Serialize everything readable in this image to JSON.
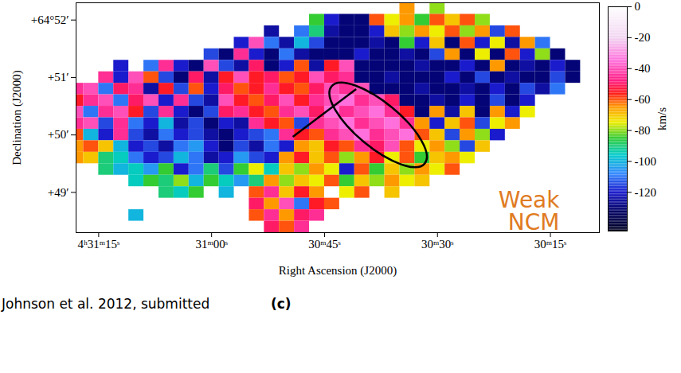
{
  "chart_data": {
    "type": "heatmap",
    "xlabel": "Right Ascension (J2000)",
    "ylabel": "Declination (J2000)",
    "xlim": [
      78,
      8.5
    ],
    "xticks": [
      {
        "value": 75,
        "label": "4ʰ31ᵐ15ˢ"
      },
      {
        "value": 60,
        "label": "31ᵐ00ˢ"
      },
      {
        "value": 45,
        "label": "30ᵐ45ˢ"
      },
      {
        "value": 30,
        "label": "30ᵐ30ˢ"
      },
      {
        "value": 15,
        "label": "30ᵐ15ˢ"
      }
    ],
    "ylim": [
      48.3,
      52.3
    ],
    "yticks": [
      {
        "value": 52,
        "label": "+64°52′"
      },
      {
        "value": 51,
        "label": "+51′"
      },
      {
        "value": 50,
        "label": "+50′"
      },
      {
        "value": 49,
        "label": "+49′"
      }
    ],
    "cells": {
      "x": [
        78,
        76,
        74,
        72,
        70,
        68,
        66,
        64,
        62,
        60,
        58,
        56,
        54,
        52,
        50,
        48,
        46,
        44,
        42,
        40,
        38,
        36,
        34,
        32,
        30,
        28,
        26,
        24,
        22,
        20,
        18,
        16,
        14,
        12
      ],
      "y": [
        52.2,
        52.0,
        51.8,
        51.6,
        51.4,
        51.2,
        51.0,
        50.8,
        50.6,
        50.4,
        50.2,
        50.0,
        49.8,
        49.6,
        49.4,
        49.2,
        49.0,
        48.8,
        48.6,
        48.4
      ],
      "values": [
        [
          null,
          null,
          null,
          null,
          null,
          null,
          null,
          null,
          null,
          null,
          null,
          null,
          null,
          null,
          null,
          null,
          null,
          null,
          null,
          null,
          null,
          null,
          -65,
          null,
          -80,
          null,
          null,
          null,
          null,
          null,
          null,
          null,
          null,
          null
        ],
        [
          null,
          null,
          null,
          null,
          null,
          null,
          null,
          null,
          null,
          null,
          null,
          null,
          null,
          null,
          null,
          null,
          -85,
          -120,
          -130,
          -130,
          -60,
          -75,
          -65,
          -85,
          -60,
          -70,
          -60,
          -80,
          null,
          null,
          null,
          null,
          null,
          null
        ],
        [
          null,
          null,
          null,
          null,
          null,
          null,
          null,
          null,
          null,
          null,
          null,
          null,
          null,
          -125,
          null,
          -110,
          -90,
          -125,
          -130,
          -130,
          -120,
          -70,
          -80,
          -65,
          -75,
          -60,
          -80,
          -65,
          -115,
          -60,
          null,
          null,
          null,
          null
        ],
        [
          null,
          null,
          null,
          null,
          null,
          null,
          null,
          null,
          null,
          null,
          null,
          -120,
          -40,
          -110,
          -125,
          -100,
          -115,
          -130,
          -130,
          -130,
          -125,
          -130,
          -85,
          -120,
          -70,
          -130,
          -60,
          -120,
          -75,
          -125,
          -65,
          -110,
          null,
          null
        ],
        [
          null,
          null,
          null,
          null,
          null,
          null,
          null,
          null,
          null,
          -115,
          -130,
          -45,
          -120,
          -130,
          -110,
          -125,
          -130,
          -130,
          -130,
          -120,
          -130,
          -130,
          -125,
          -130,
          -115,
          -65,
          -130,
          -75,
          -130,
          -60,
          -120,
          -80,
          -130,
          null
        ],
        [
          null,
          null,
          null,
          -120,
          null,
          -110,
          -45,
          -120,
          -130,
          -40,
          -115,
          -125,
          -50,
          -130,
          -120,
          -60,
          -125,
          -55,
          -40,
          -130,
          -130,
          -130,
          -130,
          -125,
          -130,
          -130,
          -120,
          -130,
          -65,
          -130,
          -125,
          -130,
          -120,
          -130
        ],
        [
          null,
          null,
          -45,
          -120,
          -40,
          -60,
          -115,
          -130,
          -50,
          -125,
          -55,
          -40,
          -55,
          -50,
          -60,
          -55,
          -40,
          -50,
          -45,
          -130,
          -130,
          -125,
          -130,
          -130,
          -130,
          -120,
          -130,
          -115,
          -130,
          -125,
          -130,
          -130,
          -115,
          -130
        ],
        [
          -45,
          -40,
          -110,
          -50,
          -45,
          -125,
          -55,
          -115,
          -60,
          -120,
          -50,
          -60,
          -55,
          -45,
          -55,
          -60,
          -50,
          -40,
          -45,
          -40,
          -130,
          -130,
          -130,
          -125,
          -130,
          -130,
          -125,
          -130,
          -120,
          -130,
          -115,
          -125,
          -110,
          null
        ],
        [
          -55,
          -45,
          -40,
          -110,
          -50,
          -40,
          -120,
          -45,
          -115,
          -125,
          -40,
          -55,
          -60,
          -50,
          -40,
          -55,
          -45,
          -40,
          -35,
          -45,
          -40,
          -50,
          -130,
          -130,
          -125,
          -130,
          -120,
          -130,
          -115,
          -130,
          -120,
          null,
          null,
          null
        ],
        [
          -40,
          -110,
          -45,
          -40,
          -55,
          -115,
          -45,
          -120,
          -130,
          -115,
          -50,
          -45,
          -55,
          -60,
          -45,
          -40,
          -50,
          -35,
          -45,
          -40,
          -35,
          -45,
          -55,
          -130,
          -65,
          -125,
          -70,
          -130,
          -65,
          -120,
          -75,
          null,
          null,
          null
        ],
        [
          -45,
          -40,
          -115,
          -45,
          -110,
          -120,
          -100,
          -125,
          -115,
          -130,
          -120,
          -125,
          -45,
          -55,
          -60,
          -115,
          -45,
          -40,
          -35,
          -45,
          -40,
          -35,
          -45,
          -65,
          -120,
          -70,
          -60,
          -115,
          -75,
          -65,
          null,
          null,
          null,
          null
        ],
        [
          -60,
          -100,
          -120,
          -45,
          -115,
          -125,
          -110,
          -120,
          -115,
          -125,
          -130,
          -120,
          -115,
          -110,
          -45,
          -55,
          -60,
          -45,
          -40,
          -35,
          -45,
          -40,
          -35,
          -60,
          -70,
          -115,
          -65,
          -80,
          -120,
          null,
          null,
          null,
          null,
          null
        ],
        [
          -65,
          -60,
          -70,
          -100,
          -120,
          -115,
          -125,
          -110,
          -105,
          -120,
          -130,
          -115,
          -125,
          -110,
          -120,
          -65,
          -70,
          -55,
          -60,
          -45,
          -50,
          -40,
          -60,
          -75,
          -65,
          -80,
          -115,
          -70,
          null,
          null,
          null,
          null,
          null,
          null
        ],
        [
          -65,
          -70,
          -90,
          -95,
          -110,
          -120,
          -115,
          -100,
          -110,
          -125,
          -120,
          -105,
          -115,
          -120,
          -65,
          -55,
          -70,
          -60,
          -80,
          -65,
          -55,
          -75,
          -60,
          -85,
          -70,
          -65,
          -75,
          null,
          null,
          null,
          null,
          null,
          null,
          null
        ],
        [
          null,
          null,
          -90,
          -100,
          -95,
          -105,
          -85,
          -120,
          -110,
          -90,
          -115,
          -85,
          -75,
          -95,
          -70,
          -80,
          -65,
          -75,
          -120,
          -60,
          -85,
          -70,
          -80,
          -65,
          -75,
          -60,
          null,
          null,
          null,
          null,
          null,
          null,
          null,
          null
        ],
        [
          null,
          null,
          null,
          null,
          -95,
          -85,
          -90,
          -80,
          -100,
          -85,
          -95,
          -105,
          -90,
          -65,
          -80,
          -70,
          -75,
          -60,
          -85,
          -70,
          -80,
          -65,
          -75,
          -70,
          null,
          null,
          null,
          null,
          null,
          null,
          null,
          null,
          null,
          null
        ],
        [
          null,
          null,
          null,
          null,
          null,
          null,
          -90,
          -95,
          -85,
          null,
          -100,
          null,
          -60,
          -45,
          -70,
          -55,
          -65,
          null,
          -75,
          -60,
          null,
          -70,
          null,
          null,
          null,
          null,
          null,
          null,
          null,
          null,
          null,
          null,
          null,
          null
        ],
        [
          null,
          null,
          null,
          null,
          null,
          null,
          null,
          null,
          null,
          null,
          null,
          null,
          -50,
          -65,
          -40,
          -110,
          -55,
          -60,
          null,
          null,
          null,
          null,
          null,
          null,
          null,
          null,
          null,
          null,
          null,
          null,
          null,
          null,
          null,
          null
        ],
        [
          null,
          null,
          null,
          null,
          -100,
          null,
          null,
          null,
          null,
          null,
          null,
          null,
          -60,
          -45,
          -65,
          -50,
          -45,
          null,
          null,
          null,
          null,
          null,
          null,
          null,
          null,
          null,
          null,
          null,
          null,
          null,
          null,
          null,
          null,
          null
        ],
        [
          null,
          null,
          null,
          null,
          null,
          null,
          null,
          null,
          null,
          null,
          null,
          null,
          null,
          -50,
          -60,
          -45,
          null,
          null,
          null,
          null,
          null,
          null,
          null,
          null,
          null,
          null,
          null,
          null,
          null,
          null,
          null,
          null,
          null,
          null
        ]
      ]
    },
    "colorbar": {
      "label": "km/s",
      "range": [
        -145,
        0
      ],
      "ticks": [
        0,
        -20,
        -40,
        -60,
        -80,
        -100,
        -120
      ]
    },
    "annotations": [
      {
        "text": "Weak NCM",
        "color": "#e07b22"
      }
    ],
    "caption": "Johnson et al. 2012, submitted",
    "panel_label": "(c)"
  }
}
